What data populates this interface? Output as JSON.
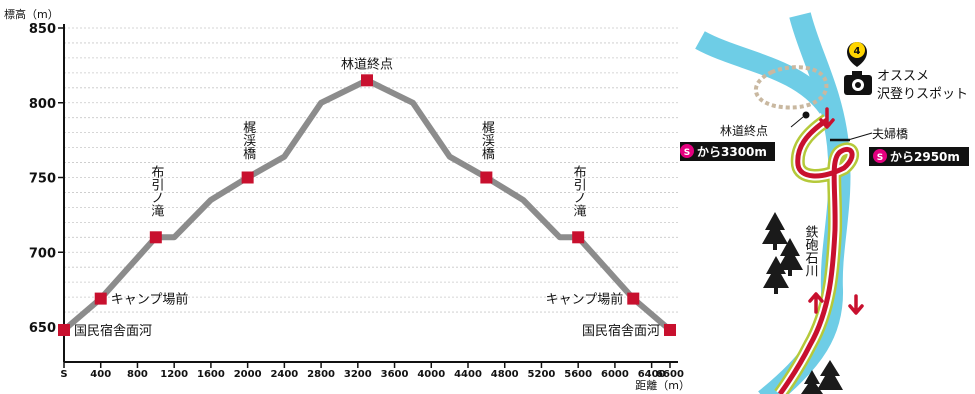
{
  "chart_data": {
    "type": "line",
    "ylabel": "標高（m）",
    "xlabel": "距離（m）",
    "ylim": [
      640,
      855
    ],
    "y_ticks": [
      "650",
      "700",
      "750",
      "800",
      "850"
    ],
    "x_ticks": [
      "S",
      "400",
      "800",
      "1200",
      "1600",
      "2000",
      "2400",
      "2800",
      "3200",
      "3600",
      "4000",
      "4400",
      "4800",
      "5200",
      "5600",
      "6000",
      "6400",
      "6600"
    ],
    "x_tick_values": [
      0,
      400,
      800,
      1200,
      1600,
      2000,
      2400,
      2800,
      3200,
      3600,
      4000,
      4400,
      4800,
      5200,
      5600,
      6000,
      6400,
      6600
    ],
    "series": [
      {
        "x": [
          0,
          400,
          1000,
          1200,
          1600,
          2000,
          2400,
          2800,
          3300,
          3800,
          4200,
          4600,
          5000,
          5400,
          5600,
          6200,
          6600
        ],
        "y": [
          648,
          669,
          710,
          710,
          735,
          750,
          764,
          800,
          815,
          800,
          764,
          750,
          735,
          710,
          710,
          669,
          648
        ],
        "color": "#8c8c8c"
      }
    ],
    "points": [
      {
        "x": 0,
        "y": 648,
        "label": "国民宿舎面河",
        "pos": "right"
      },
      {
        "x": 400,
        "y": 669,
        "label": "キャンプ場前",
        "pos": "right"
      },
      {
        "x": 1000,
        "y": 710,
        "label": "布引ノ滝",
        "pos": "above-vertical"
      },
      {
        "x": 2000,
        "y": 750,
        "label": "梶渓橋",
        "pos": "above-vertical"
      },
      {
        "x": 3300,
        "y": 815,
        "label": "林道終点",
        "pos": "above"
      },
      {
        "x": 4600,
        "y": 750,
        "label": "梶渓橋",
        "pos": "above-vertical"
      },
      {
        "x": 5600,
        "y": 710,
        "label": "布引ノ滝",
        "pos": "above-vertical"
      },
      {
        "x": 6200,
        "y": 669,
        "label": "キャンプ場前",
        "pos": "left"
      },
      {
        "x": 6600,
        "y": 648,
        "label": "国民宿舎面河",
        "pos": "left"
      }
    ],
    "marker_color": "#c8102e",
    "grid": true
  },
  "map": {
    "spot_number": "4",
    "spot_label_1": "オススメ",
    "spot_label_2": "沢登りスポット",
    "end_label": "林道終点",
    "bridge_label": "夫婦橋",
    "badge_icon": "S",
    "badge_left": "から3300m",
    "badge_right": "から2950m",
    "river_name": "鉄砲石川",
    "colors": {
      "river": "#6ecde6",
      "route_red": "#c8102e",
      "route_green": "#b5c93a",
      "trail": "#c9b8a0",
      "tree": "#1a1a1a",
      "badge_bg": "#111111",
      "badge_icon": "#e4007f"
    }
  }
}
